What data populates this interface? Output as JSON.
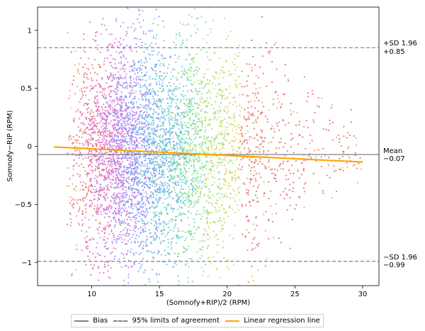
{
  "chart_data": {
    "type": "scatter",
    "title": "",
    "xlabel": "(Somnofy+RIP)/2 (RPM)",
    "ylabel": "Somnofy−RIP (RPM)",
    "xlim": [
      6,
      31.2
    ],
    "ylim": [
      -1.2,
      1.2
    ],
    "xticks": [
      "10",
      "15",
      "20",
      "25",
      "30"
    ],
    "yticks": [
      "1",
      "0.5",
      "0",
      "−0.5",
      "−1"
    ],
    "grid": false,
    "legend_position": "bottom",
    "point_colors": [
      "#e8655f",
      "#ee6fb1",
      "#d773e0",
      "#9d85f2",
      "#6ea0f5",
      "#5fc3e6",
      "#6fd6a6",
      "#86e07a",
      "#b7e065",
      "#e6d25a",
      "#f0a85a"
    ],
    "bias": {
      "value": -0.07,
      "label_top": "Mean",
      "label_bottom": "−0.07",
      "color": "#808080"
    },
    "upper_loa": {
      "value": 0.85,
      "label_top": "+SD 1.96",
      "label_bottom": "+0.85",
      "color": "#808080"
    },
    "lower_loa": {
      "value": -0.99,
      "label_top": "−SD 1.96",
      "label_bottom": "−0.99",
      "color": "#808080"
    },
    "regression": {
      "x": [
        7.2,
        30
      ],
      "y": [
        -0.005,
        -0.135
      ],
      "color": "#ffa500"
    },
    "series": [
      {
        "name": "Bias",
        "points_summary": "dense cloud of several tens of thousands of points",
        "x_center": 16,
        "x_range": [
          7,
          30
        ],
        "y_center": -0.05,
        "y_spread_sd": 0.45
      }
    ]
  },
  "legend": {
    "items": [
      {
        "label": "Bias",
        "style": "solid-gray"
      },
      {
        "label": "95% limits of agreement",
        "style": "dashed-gray"
      },
      {
        "label": "Linear regression line",
        "style": "solid-orange"
      }
    ]
  }
}
